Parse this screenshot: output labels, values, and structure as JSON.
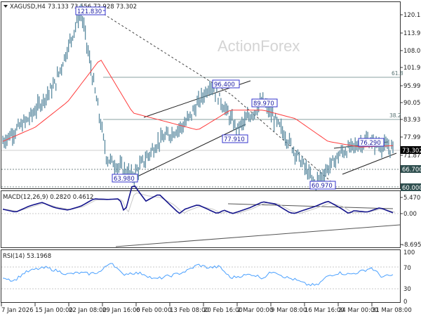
{
  "header": {
    "symbol": "XAGUSD,H4",
    "ohlc": "73.133 73.556 72.928 73.302",
    "watermark": "ActionForex"
  },
  "colors": {
    "bars": "#5b8aa0",
    "ma": "#ff3b3b",
    "macd_main": "#14148c",
    "macd_signal": "#c8c8c8",
    "rsi": "#4aa0ff",
    "price_tag_bg": "#2f4f4f",
    "current_price_bg": "#000000",
    "label_border": "#3333cc",
    "fib_line": "#8aa0a0"
  },
  "chart_data": [
    {
      "type": "line",
      "title": "XAGUSD,H4 73.133 73.556 72.928 73.302",
      "panel": "price",
      "xlabel": "",
      "ylabel": "",
      "ylim": [
        60.0,
        122.0
      ],
      "y_ticks": [
        "120.110",
        "113.990",
        "108.050",
        "101.930",
        "95.990",
        "90.050",
        "83.930",
        "77.990",
        "71.870",
        "66.700",
        "60.000"
      ],
      "x_ticks": [
        "7 Jan 2026",
        "15 Jan 00:00",
        "22 Jan 08:00",
        "29 Jan 16:00",
        "6 Feb 00:00",
        "13 Feb 08:00",
        "20 Feb 16:00",
        "2 Mar 00:00",
        "9 Mar 08:00",
        "16 Mar 16:00",
        "24 Mar 00:00",
        "31 Mar 08:00"
      ],
      "current_price": "73.302",
      "price_tags": [
        "66.700",
        "60.000"
      ],
      "fib_levels": [
        {
          "label": "61.8",
          "value": 98.4
        },
        {
          "label": "38.2",
          "value": 84.7
        }
      ],
      "annotations": [
        "121.830",
        "63.980",
        "96.400",
        "77.910",
        "89.970",
        "60.970",
        "76.290"
      ],
      "series": [
        {
          "name": "Price (approx close path)",
          "x": [
            "7 Jan",
            "15 Jan",
            "22 Jan",
            "29 Jan",
            "30 Jan",
            "6 Feb",
            "13 Feb",
            "20 Feb",
            "2 Mar",
            "4 Mar",
            "9 Mar",
            "16 Mar",
            "19 Mar",
            "24 Mar",
            "31 Mar",
            "2 Apr"
          ],
          "values": [
            76,
            84,
            96,
            121.83,
            70,
            63.98,
            76,
            82,
            96.4,
            80,
            89.97,
            76,
            60.97,
            72,
            76.29,
            73.3
          ]
        },
        {
          "name": "Moving Average",
          "x": [
            "7 Jan",
            "15 Jan",
            "22 Jan",
            "29 Jan",
            "6 Feb",
            "13 Feb",
            "20 Feb",
            "2 Mar",
            "9 Mar",
            "16 Mar",
            "24 Mar",
            "31 Mar",
            "2 Apr"
          ],
          "values": [
            76,
            81,
            90,
            105,
            86,
            83,
            80,
            87,
            87,
            84,
            76,
            74,
            74.5
          ]
        }
      ]
    },
    {
      "type": "line",
      "title": "MACD(12,26,9) 0.2820 0.4612",
      "panel": "macd",
      "ylim": [
        -8.6958,
        5.4708
      ],
      "y_ticks": [
        "5.4708",
        "0.00",
        "-8.6958"
      ],
      "series": [
        {
          "name": "MACD",
          "values": [
            1.5,
            0.5,
            2.5,
            3.8,
            2.0,
            1.2,
            2.5,
            5.0,
            4.8,
            5.0,
            -8.5,
            -3.5,
            -5.5,
            -2.0,
            1.5,
            3.0,
            1.0,
            -1.0,
            0.5,
            2.0,
            4.0,
            3.2,
            0.5,
            -0.8,
            -2.0,
            -3.5,
            -1.5,
            1.0,
            0.5,
            2.0,
            0.28
          ]
        },
        {
          "name": "Signal",
          "values": [
            1.5,
            0.8,
            2.2,
            3.5,
            2.2,
            1.4,
            2.3,
            4.6,
            4.8,
            4.9,
            -6.0,
            -5.0,
            -4.5,
            -2.5,
            0.8,
            2.5,
            1.5,
            -0.6,
            0.2,
            1.6,
            3.6,
            3.4,
            1.0,
            -0.4,
            -1.6,
            -3.0,
            -2.0,
            0.4,
            0.6,
            1.6,
            0.46
          ]
        }
      ]
    },
    {
      "type": "line",
      "title": "RSI(14) 53.1968",
      "panel": "rsi",
      "ylim": [
        0,
        100
      ],
      "y_ticks": [
        "100",
        "70",
        "30",
        "0"
      ],
      "levels": [
        70,
        30
      ],
      "series": [
        {
          "name": "RSI(14)",
          "values": [
            50,
            42,
            58,
            65,
            68,
            62,
            55,
            58,
            56,
            60,
            80,
            55,
            58,
            56,
            45,
            50,
            55,
            62,
            74,
            68,
            70,
            48,
            52,
            55,
            48,
            62,
            50,
            44,
            35,
            33,
            52,
            58,
            55,
            60,
            68,
            50,
            53.2
          ]
        }
      ]
    }
  ]
}
